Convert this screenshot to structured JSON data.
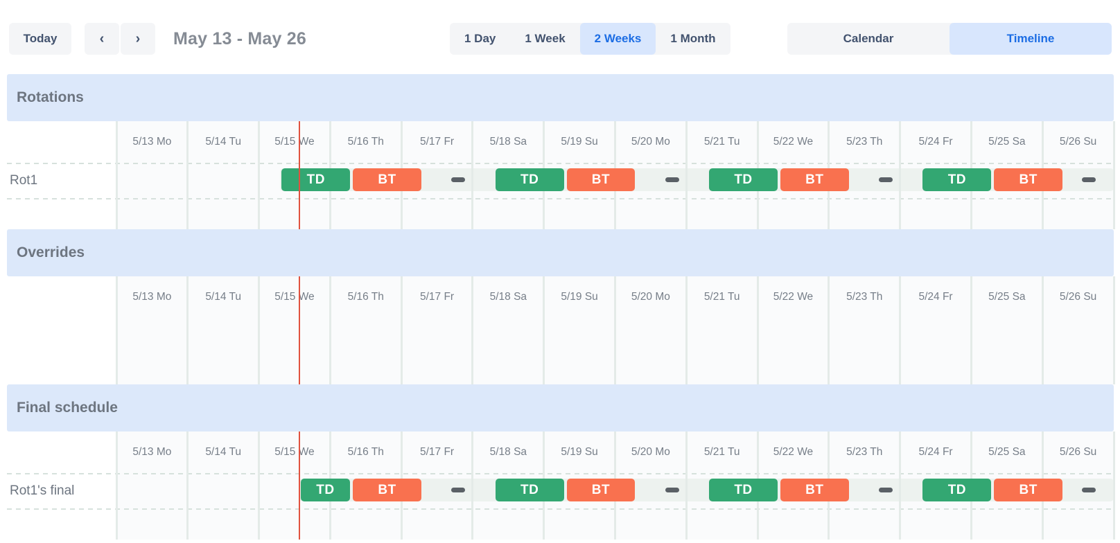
{
  "toolbar": {
    "today_label": "Today",
    "prev_icon": "‹",
    "next_icon": "›",
    "date_range": "May 13 - May 26",
    "zoom_options": [
      {
        "label": "1 Day",
        "selected": false
      },
      {
        "label": "1 Week",
        "selected": false
      },
      {
        "label": "2 Weeks",
        "selected": true
      },
      {
        "label": "1 Month",
        "selected": false
      }
    ],
    "view_options": [
      {
        "label": "Calendar",
        "selected": false
      },
      {
        "label": "Timeline",
        "selected": true
      }
    ]
  },
  "colors": {
    "shift_td": "#33a772",
    "shift_bt": "#f9714f",
    "section_band": "#dce8fa",
    "selected_button_bg": "#d8e6fd",
    "selected_button_text": "#1c6de4",
    "now_line": "#e0523f",
    "lane_bg": "#edf2ef",
    "gap_dash": "#5a6066"
  },
  "timeline": {
    "day_headers": [
      "5/13 Mo",
      "5/14 Tu",
      "5/15 We",
      "5/16 Th",
      "5/17 Fr",
      "5/18 Sa",
      "5/19 Su",
      "5/20 Mo",
      "5/21 Tu",
      "5/22 We",
      "5/23 Th",
      "5/24 Fr",
      "5/25 Sa",
      "5/26 Su"
    ],
    "now_day_offset": 2.565,
    "sections": [
      {
        "title": "Rotations",
        "rows": [
          {
            "label": "Rot1",
            "segments": [
              {
                "type": "TD",
                "start": 2.3,
                "end": 3.3
              },
              {
                "type": "BT",
                "start": 3.3,
                "end": 4.3
              },
              {
                "type": "gap",
                "start": 4.3,
                "end": 5.3
              },
              {
                "type": "TD",
                "start": 5.3,
                "end": 6.3
              },
              {
                "type": "BT",
                "start": 6.3,
                "end": 7.3
              },
              {
                "type": "gap",
                "start": 7.3,
                "end": 8.3
              },
              {
                "type": "TD",
                "start": 8.3,
                "end": 9.3
              },
              {
                "type": "BT",
                "start": 9.3,
                "end": 10.3
              },
              {
                "type": "gap",
                "start": 10.3,
                "end": 11.3
              },
              {
                "type": "TD",
                "start": 11.3,
                "end": 12.3
              },
              {
                "type": "BT",
                "start": 12.3,
                "end": 13.3
              },
              {
                "type": "gap",
                "start": 13.3,
                "end": 14
              }
            ]
          }
        ]
      },
      {
        "title": "Overrides",
        "rows": []
      },
      {
        "title": "Final schedule",
        "rows": [
          {
            "label": "Rot1's final",
            "segments": [
              {
                "type": "TD",
                "start": 2.565,
                "end": 3.3
              },
              {
                "type": "BT",
                "start": 3.3,
                "end": 4.3
              },
              {
                "type": "gap",
                "start": 4.3,
                "end": 5.3
              },
              {
                "type": "TD",
                "start": 5.3,
                "end": 6.3
              },
              {
                "type": "BT",
                "start": 6.3,
                "end": 7.3
              },
              {
                "type": "gap",
                "start": 7.3,
                "end": 8.3
              },
              {
                "type": "TD",
                "start": 8.3,
                "end": 9.3
              },
              {
                "type": "BT",
                "start": 9.3,
                "end": 10.3
              },
              {
                "type": "gap",
                "start": 10.3,
                "end": 11.3
              },
              {
                "type": "TD",
                "start": 11.3,
                "end": 12.3
              },
              {
                "type": "BT",
                "start": 12.3,
                "end": 13.3
              },
              {
                "type": "gap",
                "start": 13.3,
                "end": 14
              }
            ]
          }
        ]
      }
    ]
  }
}
